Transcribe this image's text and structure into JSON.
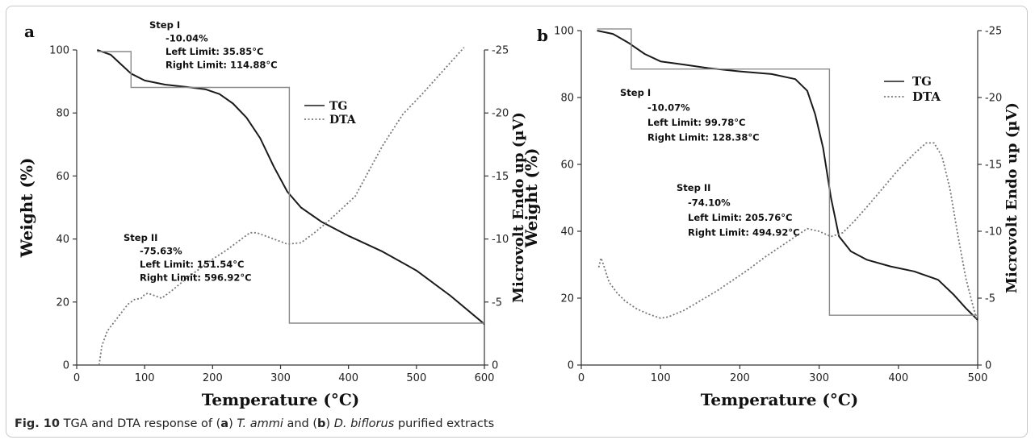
{
  "chart_data": [
    {
      "panel_label": "a",
      "type": "line",
      "xlabel": "Temperature (°C)",
      "ylabel": "Weight (%)",
      "y2label": "Microvolt Endo up (µV)",
      "xlim": [
        0,
        600
      ],
      "ylim": [
        0,
        100
      ],
      "y2lim": [
        0,
        -25
      ],
      "xticks": [
        "0",
        "100",
        "200",
        "300",
        "400",
        "500",
        "600"
      ],
      "yticks": [
        "0",
        "20",
        "40",
        "60",
        "80",
        "100"
      ],
      "y2ticks": [
        "0",
        "-5",
        "-10",
        "-15",
        "-20",
        "-25"
      ],
      "legend": {
        "placement": "right-middle",
        "entries": [
          "TG",
          "DTA"
        ]
      },
      "series": [
        {
          "name": "TG",
          "axis": "left",
          "style": "solid",
          "x": [
            30,
            50,
            65,
            80,
            100,
            130,
            160,
            190,
            210,
            230,
            250,
            270,
            290,
            310,
            330,
            360,
            400,
            450,
            500,
            550,
            600
          ],
          "y": [
            100,
            98.5,
            95.5,
            92.5,
            90.3,
            89,
            88.3,
            87.5,
            86,
            83,
            78.5,
            72,
            63,
            55,
            50,
            45.5,
            41,
            36,
            30,
            22,
            13
          ]
        },
        {
          "name": "DTA",
          "axis": "right",
          "style": "dotted",
          "x": [
            33,
            37,
            45,
            55,
            65,
            75,
            85,
            95,
            100,
            105,
            115,
            125,
            140,
            160,
            180,
            200,
            220,
            240,
            255,
            265,
            280,
            295,
            310,
            330,
            350,
            370,
            390,
            410,
            430,
            450,
            480,
            510,
            540,
            570
          ],
          "y": [
            0,
            -1.5,
            -2.7,
            -3.4,
            -4.1,
            -4.8,
            -5.2,
            -5.3,
            -5.6,
            -5.7,
            -5.5,
            -5.3,
            -5.9,
            -6.8,
            -7.6,
            -8.4,
            -9.1,
            -9.9,
            -10.5,
            -10.5,
            -10.2,
            -9.9,
            -9.6,
            -9.7,
            -10.5,
            -11.4,
            -12.4,
            -13.4,
            -15.4,
            -17.4,
            -19.9,
            -21.6,
            -23.4,
            -25.2
          ]
        },
        {
          "name": "Step",
          "axis": "left",
          "style": "solid-gray",
          "x": [
            30,
            80,
            80,
            313,
            313,
            600
          ],
          "y": [
            99.5,
            99.5,
            88.1,
            88.1,
            13.3,
            13.3
          ]
        }
      ],
      "annotations": [
        {
          "lines": [
            "Step I",
            "-10.04%",
            "Left Limit: 35.85°C",
            "Right Limit: 114.88°C"
          ]
        },
        {
          "lines": [
            "Step II",
            "-75.63%",
            "Left Limit: 151.54°C",
            "Right Limit: 596.92°C"
          ]
        }
      ]
    },
    {
      "panel_label": "b",
      "type": "line",
      "xlabel": "Temperature (°C)",
      "ylabel": "Weight (%)",
      "y2label": "Microvolt Endo up (µV)",
      "xlim": [
        0,
        500
      ],
      "ylim": [
        0,
        100
      ],
      "y2lim": [
        0,
        -25
      ],
      "xticks": [
        "0",
        "100",
        "200",
        "300",
        "400",
        "500"
      ],
      "yticks": [
        "0",
        "20",
        "40",
        "60",
        "80",
        "100"
      ],
      "y2ticks": [
        "0",
        "-5",
        "-10",
        "-15",
        "-20",
        "-25"
      ],
      "legend": {
        "placement": "top-right",
        "entries": [
          "TG",
          "DTA"
        ]
      },
      "series": [
        {
          "name": "TG",
          "axis": "left",
          "style": "solid",
          "x": [
            20,
            40,
            60,
            80,
            100,
            130,
            160,
            200,
            240,
            270,
            285,
            295,
            305,
            315,
            325,
            340,
            360,
            390,
            420,
            450,
            470,
            485,
            500
          ],
          "y": [
            100,
            99,
            96.3,
            93,
            90.8,
            89.8,
            88.8,
            87.8,
            87,
            85.5,
            82,
            75,
            65,
            50,
            38.5,
            34,
            31.5,
            29.5,
            28,
            25.5,
            21,
            17,
            13.5
          ]
        },
        {
          "name": "DTA",
          "axis": "right",
          "style": "dotted",
          "x": [
            22,
            25,
            28,
            35,
            45,
            55,
            70,
            85,
            100,
            110,
            130,
            150,
            170,
            190,
            210,
            230,
            250,
            270,
            285,
            300,
            315,
            330,
            345,
            360,
            380,
            400,
            420,
            435,
            445,
            455,
            465,
            475,
            485,
            495,
            500
          ],
          "y": [
            -7.3,
            -8,
            -7.5,
            -6.2,
            -5.4,
            -4.8,
            -4.2,
            -3.8,
            -3.5,
            -3.6,
            -4.1,
            -4.8,
            -5.5,
            -6.3,
            -7.1,
            -8,
            -8.8,
            -9.6,
            -10.2,
            -10,
            -9.6,
            -9.9,
            -10.8,
            -11.8,
            -13.2,
            -14.6,
            -15.8,
            -16.6,
            -16.6,
            -15.6,
            -13.2,
            -9.7,
            -6.5,
            -4.2,
            -3.2
          ]
        },
        {
          "name": "Step",
          "axis": "left",
          "style": "solid-gray",
          "x": [
            20,
            63,
            63,
            313,
            313,
            500
          ],
          "y": [
            100.5,
            100.5,
            88.5,
            88.5,
            14.9,
            14.9
          ]
        }
      ],
      "annotations": [
        {
          "lines": [
            "Step I",
            "-10.07%",
            "Left Limit: 99.78°C",
            "Right Limit: 128.38°C"
          ]
        },
        {
          "lines": [
            "Step II",
            "-74.10%",
            "Left Limit: 205.76°C",
            "Right Limit: 494.92°C"
          ]
        }
      ]
    }
  ],
  "caption": {
    "fig": "Fig. 10",
    "text_1": " TGA and DTA response of (",
    "label_a": "a",
    "text_2": ") ",
    "species_a": "T. ammi",
    "text_3": " and (",
    "label_b": "b",
    "text_4": ") ",
    "species_b": "D. biflorus",
    "text_5": " purified extracts"
  }
}
